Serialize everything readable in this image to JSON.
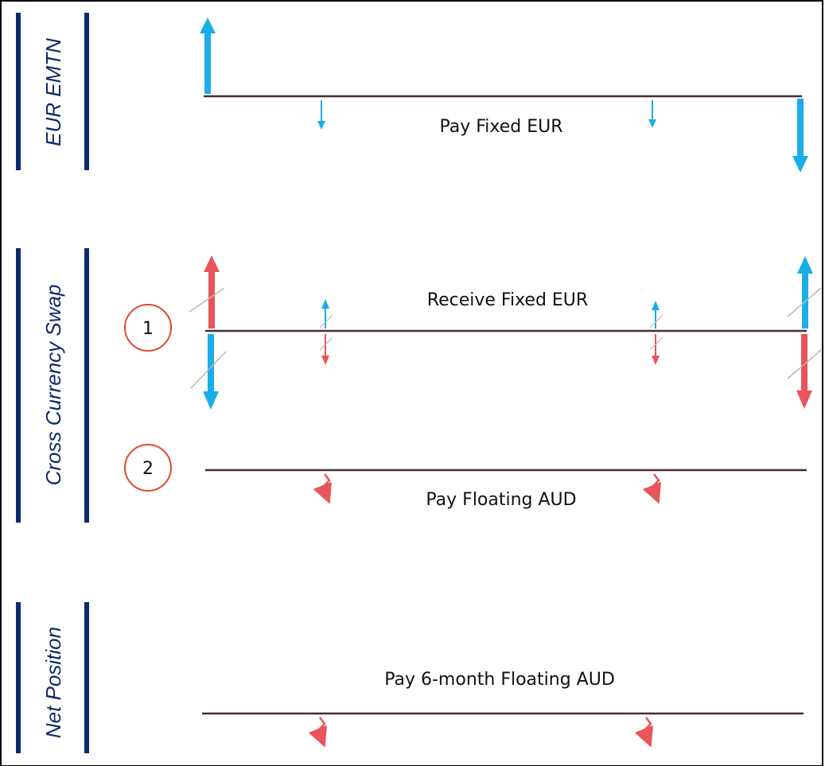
{
  "colors": {
    "navy": "#0d2a6b",
    "blue_flow": "#1aaee8",
    "red_flow": "#e8555a",
    "timeline": "#4a2a30",
    "circle": "#e04a2e",
    "hatch": "#b8b8b8"
  },
  "sections": {
    "emtn": {
      "title": "EUR EMTN",
      "flow_label": "Pay Fixed EUR"
    },
    "swap": {
      "title": "Cross Currency Swap",
      "leg1": {
        "number": "1",
        "flow_label": "Receive Fixed EUR"
      },
      "leg2": {
        "number": "2",
        "flow_label": "Pay Floating AUD"
      }
    },
    "net": {
      "title": "Net Position",
      "flow_label": "Pay 6-month Floating AUD"
    }
  },
  "icons": {
    "principal_up": "up-arrow-icon",
    "principal_down": "down-arrow-icon",
    "floating_payment": "squiggle-arrow-icon",
    "strike": "hatch-mark-icon"
  }
}
